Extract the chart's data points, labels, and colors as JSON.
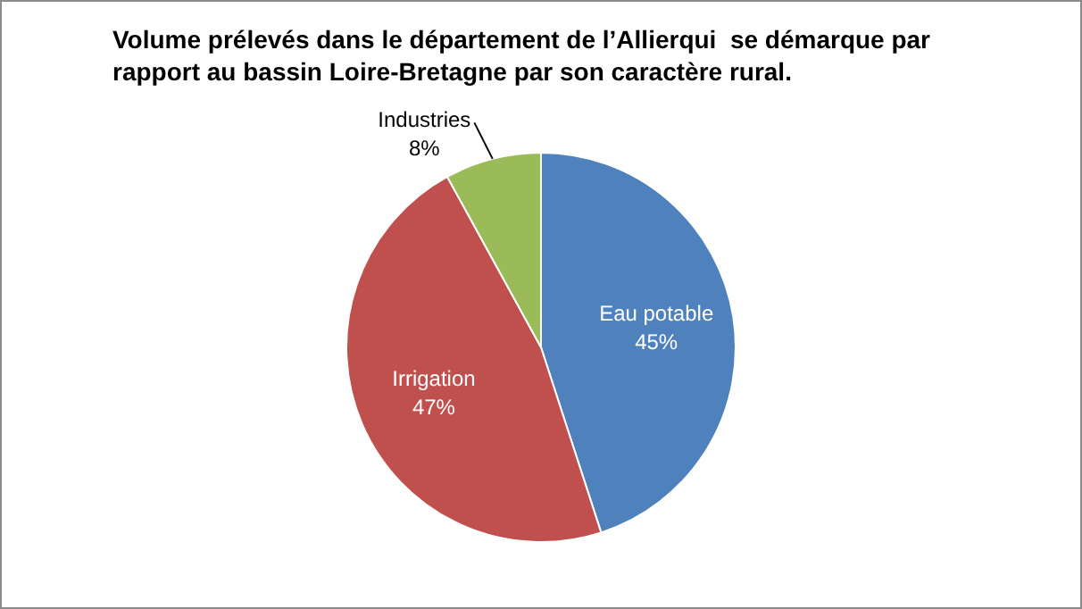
{
  "chart_data": {
    "type": "pie",
    "title": "Volume prélevés dans le département de l’Allierqui  se démarque par rapport au bassin Loire-Bretagne par son caractère rural.",
    "categories": [
      "Eau potable",
      "Irrigation",
      "Industries"
    ],
    "values": [
      45,
      47,
      8
    ],
    "value_labels": [
      "45%",
      "47%",
      "8%"
    ],
    "colors": [
      "#4f81bd",
      "#c0504d",
      "#9bbb59"
    ],
    "legend": false
  }
}
